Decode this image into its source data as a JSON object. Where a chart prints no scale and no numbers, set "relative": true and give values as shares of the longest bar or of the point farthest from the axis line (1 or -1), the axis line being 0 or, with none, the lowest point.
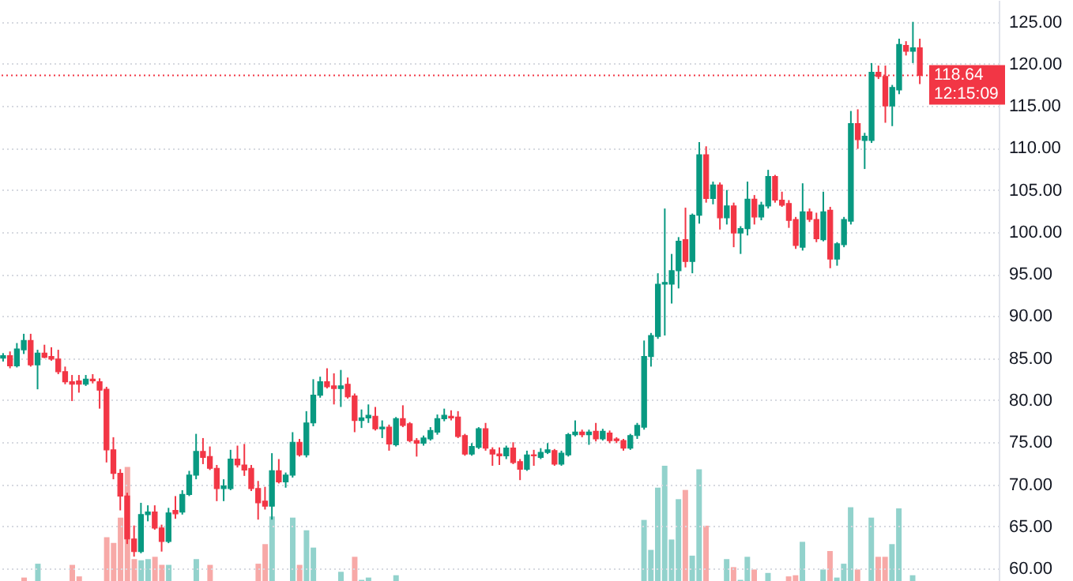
{
  "chart_data": [
    {
      "type": "candlestick",
      "categories": [
        null,
        null,
        null,
        null,
        null,
        null,
        null,
        null,
        null,
        null,
        null,
        null,
        null,
        null,
        null,
        null,
        null,
        null,
        null,
        null,
        null,
        null,
        null,
        null,
        null,
        null,
        null,
        null,
        null,
        null,
        null,
        null,
        null,
        null,
        null,
        null,
        null,
        null,
        null,
        null,
        null,
        null,
        null,
        null,
        null,
        null,
        null,
        null,
        null,
        null,
        null,
        null,
        null,
        null,
        null,
        null,
        null,
        null,
        null,
        null,
        null,
        null,
        null,
        null,
        null,
        null,
        null,
        null,
        null,
        null,
        null,
        null,
        null,
        null,
        null,
        null,
        null,
        null,
        null,
        null,
        null,
        null,
        null,
        null,
        null,
        null,
        null,
        null,
        null,
        null,
        null,
        null,
        null,
        null,
        null,
        null,
        null,
        null,
        null,
        null,
        null,
        null,
        null,
        null,
        null,
        null,
        null,
        null,
        null,
        null,
        null,
        null,
        null,
        null,
        null,
        null,
        null,
        null,
        null,
        null,
        null,
        null,
        null,
        null,
        null,
        null,
        null,
        null,
        null,
        null,
        null,
        null,
        null,
        null,
        null,
        null,
        null,
        null,
        null,
        null,
        null,
        null,
        null,
        null,
        null
      ],
      "ohlc": [
        [
          85.0,
          85.6,
          84.6,
          85.3
        ],
        [
          85.3,
          85.8,
          83.8,
          84.1
        ],
        [
          84.1,
          86.8,
          83.9,
          86.1
        ],
        [
          86.0,
          87.9,
          85.5,
          87.1
        ],
        [
          87.1,
          87.9,
          84.0,
          84.2
        ],
        [
          84.2,
          86.0,
          81.3,
          85.6
        ],
        [
          85.6,
          86.6,
          85.0,
          85.1
        ],
        [
          85.2,
          86.3,
          84.7,
          84.9
        ],
        [
          84.9,
          86.0,
          83.1,
          83.4
        ],
        [
          83.4,
          84.0,
          81.9,
          82.2
        ],
        [
          82.2,
          83.0,
          79.9,
          81.9
        ],
        [
          82.3,
          83.0,
          80.9,
          81.9
        ],
        [
          81.9,
          83.0,
          81.7,
          82.5
        ],
        [
          82.5,
          83.1,
          82.0,
          82.3
        ],
        [
          82.2,
          82.6,
          79.0,
          81.2
        ],
        [
          81.3,
          81.6,
          72.6,
          74.1
        ],
        [
          74.1,
          75.6,
          70.6,
          71.3
        ],
        [
          71.3,
          71.8,
          66.9,
          68.6
        ],
        [
          68.6,
          69.0,
          62.9,
          63.5
        ],
        [
          63.5,
          65.1,
          61.4,
          62.0
        ],
        [
          62.0,
          67.8,
          61.8,
          66.4
        ],
        [
          66.4,
          67.5,
          65.6,
          66.7
        ],
        [
          66.7,
          67.5,
          64.6,
          64.8
        ],
        [
          64.8,
          65.2,
          62.0,
          63.2
        ],
        [
          63.2,
          67.2,
          63.0,
          66.6
        ],
        [
          66.9,
          68.6,
          65.9,
          66.5
        ],
        [
          66.7,
          69.3,
          66.4,
          68.8
        ],
        [
          68.8,
          71.6,
          68.6,
          71.1
        ],
        [
          71.1,
          76.0,
          70.6,
          73.9
        ],
        [
          73.9,
          75.5,
          72.4,
          73.2
        ],
        [
          73.3,
          74.5,
          71.7,
          71.9
        ],
        [
          71.9,
          72.3,
          68.0,
          69.5
        ],
        [
          69.5,
          70.6,
          68.0,
          69.8
        ],
        [
          69.5,
          74.1,
          69.3,
          73.0
        ],
        [
          73.0,
          74.6,
          72.0,
          72.3
        ],
        [
          72.3,
          74.8,
          71.0,
          71.7
        ],
        [
          71.9,
          72.3,
          69.2,
          69.5
        ],
        [
          69.5,
          70.4,
          65.8,
          67.8
        ],
        [
          68.0,
          69.7,
          67.0,
          67.4
        ],
        [
          67.4,
          73.7,
          65.8,
          71.6
        ],
        [
          71.6,
          73.0,
          70.1,
          70.3
        ],
        [
          70.3,
          71.4,
          69.6,
          71.1
        ],
        [
          71.1,
          76.2,
          70.8,
          75.0
        ],
        [
          75.0,
          75.4,
          73.3,
          73.5
        ],
        [
          73.5,
          78.7,
          73.2,
          77.3
        ],
        [
          77.3,
          82.5,
          76.9,
          80.6
        ],
        [
          80.6,
          82.8,
          80.3,
          82.2
        ],
        [
          82.2,
          83.8,
          81.4,
          81.6
        ],
        [
          81.7,
          83.2,
          79.5,
          81.4
        ],
        [
          81.4,
          83.6,
          79.2,
          81.7
        ],
        [
          81.9,
          82.7,
          80.2,
          80.4
        ],
        [
          80.5,
          80.8,
          76.2,
          77.6
        ],
        [
          77.6,
          78.9,
          76.7,
          77.9
        ],
        [
          77.9,
          79.5,
          77.3,
          78.2
        ],
        [
          78.1,
          79.2,
          76.4,
          76.6
        ],
        [
          76.6,
          77.6,
          75.5,
          76.8
        ],
        [
          76.8,
          77.1,
          74.0,
          74.8
        ],
        [
          74.7,
          78.0,
          74.5,
          77.8
        ],
        [
          77.8,
          79.4,
          76.8,
          77.0
        ],
        [
          77.2,
          77.4,
          75.0,
          75.2
        ],
        [
          75.2,
          75.5,
          73.3,
          74.9
        ],
        [
          74.9,
          75.8,
          74.6,
          75.5
        ],
        [
          75.4,
          76.8,
          75.2,
          76.4
        ],
        [
          76.2,
          78.3,
          75.9,
          77.8
        ],
        [
          77.8,
          79.0,
          77.5,
          78.2
        ],
        [
          78.1,
          78.8,
          77.6,
          77.9
        ],
        [
          78.0,
          78.7,
          75.5,
          75.7
        ],
        [
          75.8,
          76.0,
          73.4,
          73.6
        ],
        [
          73.6,
          74.9,
          73.4,
          74.5
        ],
        [
          74.4,
          76.8,
          74.2,
          76.6
        ],
        [
          76.6,
          77.3,
          74.0,
          74.3
        ],
        [
          74.1,
          74.4,
          72.2,
          73.6
        ],
        [
          73.6,
          74.4,
          72.3,
          73.4
        ],
        [
          73.4,
          74.6,
          73.0,
          74.3
        ],
        [
          74.3,
          75.0,
          72.4,
          72.6
        ],
        [
          72.7,
          73.0,
          70.5,
          71.8
        ],
        [
          71.8,
          74.0,
          71.6,
          73.5
        ],
        [
          73.5,
          74.1,
          72.2,
          73.4
        ],
        [
          73.2,
          74.3,
          73.0,
          73.8
        ],
        [
          73.8,
          74.9,
          73.6,
          74.1
        ],
        [
          74.0,
          74.2,
          72.2,
          72.4
        ],
        [
          72.4,
          74.0,
          72.2,
          73.7
        ],
        [
          73.5,
          76.1,
          73.3,
          75.9
        ],
        [
          75.9,
          77.6,
          75.7,
          76.2
        ],
        [
          76.2,
          76.5,
          75.6,
          75.9
        ],
        [
          75.9,
          76.5,
          74.7,
          76.2
        ],
        [
          76.3,
          77.3,
          75.1,
          75.4
        ],
        [
          75.4,
          76.6,
          75.2,
          76.3
        ],
        [
          76.1,
          76.4,
          74.9,
          75.2
        ],
        [
          75.4,
          75.6,
          74.9,
          75.2
        ],
        [
          75.2,
          75.4,
          74.0,
          74.3
        ],
        [
          74.3,
          76.0,
          74.1,
          75.8
        ],
        [
          75.8,
          77.3,
          75.4,
          77.0
        ],
        [
          76.8,
          87.1,
          76.5,
          85.2
        ],
        [
          85.2,
          88.0,
          84.0,
          87.7
        ],
        [
          87.6,
          95.1,
          87.3,
          93.8
        ],
        [
          93.8,
          102.8,
          87.7,
          94.0
        ],
        [
          93.8,
          97.4,
          91.5,
          95.4
        ],
        [
          95.4,
          99.4,
          93.3,
          98.9
        ],
        [
          99.1,
          102.9,
          95.8,
          96.5
        ],
        [
          96.5,
          102.2,
          95.1,
          102.0
        ],
        [
          102.0,
          110.7,
          101.0,
          109.2
        ],
        [
          109.2,
          110.2,
          103.5,
          104.0
        ],
        [
          104.0,
          106.0,
          103.3,
          105.6
        ],
        [
          105.6,
          105.9,
          100.3,
          101.7
        ],
        [
          101.7,
          105.0,
          100.9,
          103.1
        ],
        [
          103.1,
          103.5,
          98.2,
          99.9
        ],
        [
          99.9,
          100.7,
          97.4,
          100.4
        ],
        [
          100.4,
          106.0,
          99.6,
          103.9
        ],
        [
          103.9,
          104.4,
          100.9,
          101.8
        ],
        [
          101.8,
          103.6,
          101.4,
          103.2
        ],
        [
          103.1,
          107.4,
          102.8,
          106.6
        ],
        [
          106.6,
          106.8,
          103.5,
          103.8
        ],
        [
          103.8,
          104.8,
          103.0,
          103.2
        ],
        [
          103.4,
          103.8,
          100.5,
          101.4
        ],
        [
          101.5,
          101.8,
          98.0,
          98.4
        ],
        [
          98.2,
          105.8,
          97.8,
          102.4
        ],
        [
          102.4,
          102.8,
          101.2,
          101.5
        ],
        [
          101.5,
          102.3,
          98.8,
          99.2
        ],
        [
          99.1,
          104.8,
          98.9,
          102.4
        ],
        [
          102.6,
          103.0,
          95.7,
          96.8
        ],
        [
          96.8,
          98.8,
          96.0,
          98.6
        ],
        [
          98.5,
          101.8,
          98.2,
          101.5
        ],
        [
          101.3,
          114.4,
          100.9,
          112.9
        ],
        [
          112.9,
          114.6,
          109.9,
          111.0
        ],
        [
          110.9,
          111.8,
          107.5,
          111.4
        ],
        [
          110.9,
          120.1,
          110.6,
          119.0
        ],
        [
          119.0,
          119.8,
          118.2,
          118.5
        ],
        [
          118.5,
          119.8,
          113.0,
          115.0
        ],
        [
          115.0,
          117.5,
          112.6,
          117.2
        ],
        [
          116.9,
          123.0,
          116.4,
          122.3
        ],
        [
          122.2,
          122.7,
          121.0,
          121.5
        ],
        [
          121.5,
          125.0,
          120.1,
          121.9
        ],
        [
          121.9,
          123.0,
          117.6,
          118.64
        ],
        null,
        null,
        null,
        null,
        null,
        null,
        null,
        null,
        null,
        null,
        null
      ],
      "colors": [
        "#089981",
        "#f23645",
        "#089981",
        "#089981",
        "#f23645",
        "#089981",
        "#f23645",
        "#f23645",
        "#f23645",
        "#f23645",
        "#f23645",
        "#f23645",
        "#089981",
        "#f23645",
        "#f23645",
        "#f23645",
        "#f23645",
        "#f23645",
        "#f23645",
        "#f23645",
        "#089981",
        "#089981",
        "#f23645",
        "#f23645",
        "#089981",
        "#f23645",
        "#089981",
        "#089981",
        "#089981",
        "#f23645",
        "#f23645",
        "#f23645",
        "#089981",
        "#089981",
        "#f23645",
        "#f23645",
        "#f23645",
        "#f23645",
        "#f23645",
        "#089981",
        "#f23645",
        "#089981",
        "#089981",
        "#f23645",
        "#089981",
        "#089981",
        "#089981",
        "#f23645",
        "#f23645",
        "#089981",
        "#f23645",
        "#f23645",
        "#089981",
        "#089981",
        "#f23645",
        "#089981",
        "#f23645",
        "#089981",
        "#f23645",
        "#f23645",
        "#f23645",
        "#089981",
        "#089981",
        "#089981",
        "#089981",
        "#f23645",
        "#f23645",
        "#f23645",
        "#089981",
        "#089981",
        "#f23645",
        "#f23645",
        "#f23645",
        "#089981",
        "#f23645",
        "#f23645",
        "#089981",
        "#f23645",
        "#089981",
        "#089981",
        "#f23645",
        "#089981",
        "#089981",
        "#089981",
        "#f23645",
        "#089981",
        "#f23645",
        "#089981",
        "#f23645",
        "#f23645",
        "#f23645",
        "#089981",
        "#089981",
        "#089981",
        "#089981",
        "#089981",
        "#089981",
        "#089981",
        "#089981",
        "#f23645",
        "#089981",
        "#089981",
        "#f23645",
        "#089981",
        "#f23645",
        "#089981",
        "#f23645",
        "#089981",
        "#089981",
        "#f23645",
        "#089981",
        "#089981",
        "#f23645",
        "#f23645",
        "#f23645",
        "#f23645",
        "#089981",
        "#f23645",
        "#f23645",
        "#089981",
        "#f23645",
        "#089981",
        "#089981",
        "#089981",
        "#f23645",
        "#089981",
        "#089981",
        "#f23645",
        "#f23645",
        "#089981",
        "#089981",
        "#f23645",
        "#089981",
        "#f23645",
        null,
        null,
        null,
        null,
        null,
        null,
        null,
        null,
        null,
        null,
        null
      ],
      "ylim": [
        58.5,
        127.6
      ],
      "yticks": [
        {
          "value": 60,
          "label": "60.00"
        },
        {
          "value": 65,
          "label": "65.00"
        },
        {
          "value": 70,
          "label": "70.00"
        },
        {
          "value": 75,
          "label": "75.00"
        },
        {
          "value": 80,
          "label": "80.00"
        },
        {
          "value": 85,
          "label": "85.00"
        },
        {
          "value": 90,
          "label": "90.00"
        },
        {
          "value": 95,
          "label": "95.00"
        },
        {
          "value": 100,
          "label": "100.00"
        },
        {
          "value": 105,
          "label": "105.00"
        },
        {
          "value": 110,
          "label": "110.00"
        },
        {
          "value": 115,
          "label": "115.00"
        },
        {
          "value": 120,
          "label": "120.00"
        },
        {
          "value": 125,
          "label": "125.00"
        }
      ],
      "grid": "y",
      "tick_labels": "y",
      "ref_lines": [
        {
          "axis": "y",
          "value": 118.64,
          "label": "118.64",
          "color": "#f23645",
          "line_style": "dotted"
        }
      ],
      "annotations": [
        "12:15:09"
      ]
    },
    {
      "type": "bar",
      "relative": true,
      "categories": [
        null,
        null,
        null,
        null,
        null,
        null,
        null,
        null,
        null,
        null,
        null,
        null,
        null,
        null,
        null,
        null,
        null,
        null,
        null,
        null,
        null,
        null,
        null,
        null,
        null,
        null,
        null,
        null,
        null,
        null,
        null,
        null,
        null,
        null,
        null,
        null,
        null,
        null,
        null,
        null,
        null,
        null,
        null,
        null,
        null,
        null,
        null,
        null,
        null,
        null,
        null,
        null,
        null,
        null,
        null,
        null,
        null,
        null,
        null,
        null,
        null,
        null,
        null,
        null,
        null,
        null,
        null,
        null,
        null,
        null,
        null,
        null,
        null,
        null,
        null,
        null,
        null,
        null,
        null,
        null,
        null,
        null,
        null,
        null,
        null,
        null,
        null,
        null,
        null,
        null,
        null,
        null,
        null,
        null,
        null,
        null,
        null,
        null,
        null,
        null,
        null,
        null,
        null,
        null,
        null,
        null,
        null,
        null,
        null,
        null,
        null,
        null,
        null,
        null,
        null,
        null,
        null,
        null,
        null,
        null,
        null,
        null,
        null,
        null,
        null,
        null,
        null,
        null,
        null,
        null,
        null,
        null,
        null,
        null,
        null,
        null,
        null,
        null,
        null,
        null,
        null,
        null,
        null,
        null,
        null
      ],
      "values": [
        null,
        null,
        null,
        0.03,
        null,
        0.15,
        null,
        null,
        null,
        null,
        0.14,
        0.04,
        null,
        null,
        null,
        0.38,
        0.33,
        0.55,
        0.99,
        0.19,
        0.18,
        0.19,
        0.21,
        0.14,
        0.14,
        null,
        null,
        null,
        0.19,
        null,
        0.14,
        null,
        null,
        null,
        null,
        null,
        null,
        0.15,
        0.32,
        0.56,
        null,
        null,
        0.55,
        0.14,
        0.44,
        0.29,
        null,
        null,
        null,
        0.08,
        null,
        0.21,
        0.01,
        0.03,
        null,
        null,
        null,
        0.05,
        null,
        null,
        null,
        null,
        null,
        null,
        null,
        null,
        null,
        null,
        null,
        null,
        null,
        null,
        null,
        null,
        null,
        null,
        null,
        null,
        null,
        null,
        null,
        null,
        null,
        null,
        null,
        null,
        null,
        null,
        null,
        null,
        null,
        null,
        null,
        0.53,
        0.27,
        0.81,
        1,
        0.36,
        0.71,
        0.79,
        0.22,
        0.97,
        0.48,
        null,
        null,
        0.19,
        0.12,
        0.01,
        0.21,
        0.1,
        null,
        0.07,
        null,
        null,
        0.04,
        0.05,
        0.34,
        null,
        null,
        0.1,
        0.26,
        0.03,
        0.15,
        0.64,
        0.1,
        null,
        0.55,
        0.21,
        0.21,
        0.32,
        0.63,
        null,
        0.05,
        null,
        null,
        null,
        null,
        null,
        null,
        null,
        null,
        null,
        null,
        null,
        null
      ],
      "colors": [
        null,
        null,
        null,
        "#f7a9a7",
        null,
        "#92d2cc",
        null,
        null,
        null,
        null,
        "#f7a9a7",
        "#f7a9a7",
        null,
        null,
        null,
        "#f7a9a7",
        "#f7a9a7",
        "#f7a9a7",
        "#f7a9a7",
        "#f7a9a7",
        "#92d2cc",
        "#92d2cc",
        "#f7a9a7",
        "#f7a9a7",
        "#92d2cc",
        null,
        null,
        null,
        "#92d2cc",
        null,
        "#f7a9a7",
        null,
        null,
        null,
        null,
        null,
        null,
        "#f7a9a7",
        "#f7a9a7",
        "#92d2cc",
        null,
        null,
        "#92d2cc",
        "#f7a9a7",
        "#92d2cc",
        "#92d2cc",
        null,
        null,
        null,
        "#92d2cc",
        null,
        "#f7a9a7",
        "#92d2cc",
        "#92d2cc",
        null,
        null,
        null,
        "#92d2cc",
        null,
        null,
        null,
        null,
        null,
        null,
        null,
        null,
        null,
        null,
        null,
        null,
        null,
        null,
        null,
        null,
        null,
        null,
        null,
        null,
        null,
        null,
        null,
        null,
        null,
        null,
        null,
        null,
        null,
        null,
        null,
        null,
        null,
        null,
        null,
        "#92d2cc",
        "#92d2cc",
        "#92d2cc",
        "#92d2cc",
        "#92d2cc",
        "#92d2cc",
        "#f7a9a7",
        "#92d2cc",
        "#92d2cc",
        "#f7a9a7",
        null,
        null,
        "#92d2cc",
        "#f7a9a7",
        "#92d2cc",
        "#92d2cc",
        "#f7a9a7",
        null,
        "#92d2cc",
        null,
        null,
        "#f7a9a7",
        "#f7a9a7",
        "#92d2cc",
        null,
        null,
        "#92d2cc",
        "#f7a9a7",
        "#92d2cc",
        "#92d2cc",
        "#92d2cc",
        "#f7a9a7",
        null,
        "#92d2cc",
        "#f7a9a7",
        "#f7a9a7",
        "#92d2cc",
        "#92d2cc",
        null,
        "#92d2cc",
        null,
        null,
        null,
        null,
        null,
        null,
        null,
        null,
        null,
        null,
        null,
        null
      ]
    }
  ]
}
